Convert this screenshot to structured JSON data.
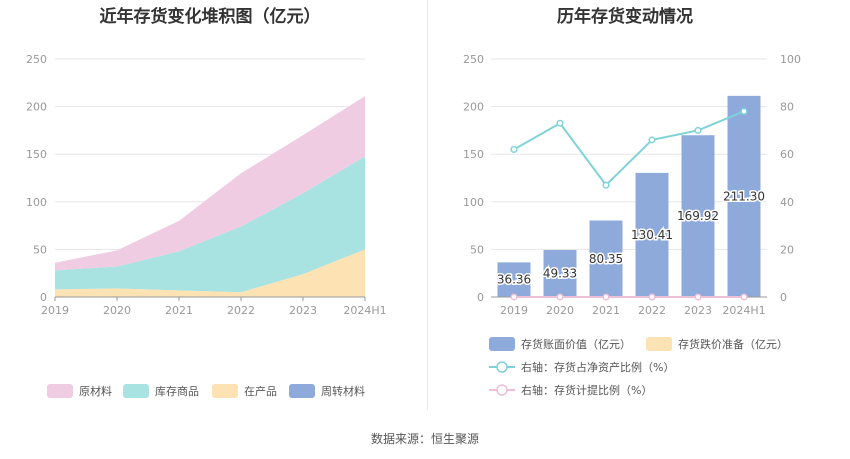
{
  "left_title": "近年存货变化堆积图（亿元）",
  "right_title": "历年存货变动情况",
  "source": "数据来源：恒生聚源",
  "chart_data": [
    {
      "type": "area",
      "stacked": true,
      "title": "近年存货变化堆积图（亿元）",
      "x": [
        "2019",
        "2020",
        "2021",
        "2022",
        "2023",
        "2024H1"
      ],
      "ylim": [
        0,
        250
      ],
      "yticks": [
        0,
        50,
        100,
        150,
        200,
        250
      ],
      "legend_position": "bottom",
      "series": [
        {
          "name": "周转材料",
          "color": "#8eaadb",
          "values": [
            0,
            0,
            0,
            0,
            0,
            0
          ]
        },
        {
          "name": "在产品",
          "color": "#fde2b3",
          "values": [
            8,
            9,
            7,
            5,
            24,
            50
          ]
        },
        {
          "name": "库存商品",
          "color": "#a8e3e2",
          "values": [
            20,
            23,
            41,
            69,
            85,
            98
          ]
        },
        {
          "name": "原材料",
          "color": "#f0cce3",
          "values": [
            8,
            17,
            32,
            56,
            61,
            63
          ]
        }
      ],
      "legend_order": [
        "原材料",
        "库存商品",
        "在产品",
        "周转材料"
      ]
    },
    {
      "type": "bar",
      "title": "历年存货变动情况",
      "x": [
        "2019",
        "2020",
        "2021",
        "2022",
        "2023",
        "2024H1"
      ],
      "ylim": [
        0,
        250
      ],
      "yticks": [
        0,
        50,
        100,
        150,
        200,
        250
      ],
      "y2lim": [
        0,
        100
      ],
      "y2ticks": [
        0,
        20,
        40,
        60,
        80,
        100
      ],
      "legend_position": "bottom",
      "bars": [
        {
          "name": "存货账面价值（亿元）",
          "color": "#8eaadb",
          "values": [
            36.36,
            49.33,
            80.35,
            130.41,
            169.92,
            211.3
          ],
          "labels": [
            "36.36",
            "49.33",
            "80.35",
            "130.41",
            "169.92",
            "211.30"
          ]
        },
        {
          "name": "存货跌价准备（亿元）",
          "color": "#fde2b3",
          "values": [
            0,
            0,
            0,
            0,
            0,
            0
          ]
        }
      ],
      "lines": [
        {
          "name": "右轴：存货占净资产比例（%）",
          "color": "#7fd3d8",
          "axis": "right",
          "values": [
            62,
            73,
            47,
            66,
            70,
            78
          ]
        },
        {
          "name": "右轴：存货计提比例（%）",
          "color": "#eebfd9",
          "axis": "right",
          "values": [
            0,
            0,
            0,
            0,
            0,
            0
          ]
        }
      ]
    }
  ]
}
